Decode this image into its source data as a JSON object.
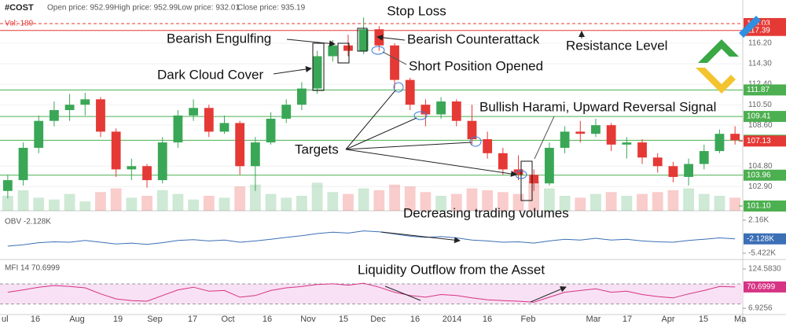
{
  "chart_data": {
    "type": "candlestick",
    "header": {
      "symbol": "#COST",
      "open": "Open price: 952.99",
      "high": "High price: 952.99",
      "low": "Low price: 932.01",
      "close": "Close price: 935.19",
      "volume": "Vol: 189"
    },
    "annotations": [
      "Stop Loss",
      "Bearish Engulfing",
      "Bearish Counterattack",
      "Resistance Level",
      "Dark Cloud Cover",
      "Short Position Opened",
      "Bullish Harami, Upward Reversal Signal",
      "Targets",
      "Decreasing trading volumes",
      "Liquidity Outflow from the Asset"
    ],
    "x_labels": [
      "ul",
      "16",
      "Aug",
      "19",
      "Sep",
      "17",
      "Oct",
      "16",
      "Nov",
      "15",
      "Dec",
      "16",
      "2014",
      "16",
      "Feb",
      "Mar",
      "17",
      "Apr",
      "15",
      "Ma"
    ],
    "up_color": "#3aa757",
    "down_color": "#e53935",
    "ylim": [
      100.66,
      118.61
    ],
    "yticks": [
      {
        "value": 116.2,
        "label": "116.20"
      },
      {
        "value": 114.3,
        "label": "114.30"
      },
      {
        "value": 112.4,
        "label": "112.40"
      },
      {
        "value": 110.5,
        "label": "110.50"
      },
      {
        "value": 108.6,
        "label": "108.60"
      },
      {
        "value": 104.8,
        "label": "104.80"
      },
      {
        "value": 102.9,
        "label": "102.90"
      }
    ],
    "levels": [
      {
        "value": 118.03,
        "label": "118.03",
        "color": "#e53935",
        "dashed": true
      },
      {
        "value": 117.39,
        "label": "117.39",
        "color": "#e53935",
        "dashed": false
      },
      {
        "value": 111.87,
        "label": "111.87",
        "color": "#4caf50",
        "dashed": false
      },
      {
        "value": 109.41,
        "label": "109.41",
        "color": "#4caf50",
        "dashed": false
      },
      {
        "value": 107.2,
        "label": "107.20",
        "color": "#4caf50",
        "dashed": false
      },
      {
        "value": 103.96,
        "label": "103.96",
        "color": "#4caf50",
        "dashed": false
      }
    ],
    "price_labels": [
      {
        "value": 107.13,
        "label": "107.13",
        "color": "#e53935"
      },
      {
        "value": 101.1,
        "label": "101.10",
        "color": "#4caf50"
      }
    ],
    "open": [
      102.5,
      103.5,
      106.5,
      109,
      110,
      110.5,
      111,
      108,
      104.5,
      104.8,
      103.5,
      107,
      109.5,
      110.2,
      108,
      108.8,
      104.8,
      107,
      109.2,
      110.5,
      112,
      115,
      116,
      115.5,
      117.5,
      116,
      112.8,
      110.5,
      109.6,
      110.8,
      109,
      107.3,
      106,
      104.5,
      104,
      103.2,
      106.5,
      108,
      107.8,
      108.6,
      106.8,
      107,
      105.6,
      104.8,
      103.8,
      105,
      106.2,
      107.8
    ],
    "high": [
      104,
      107,
      109.5,
      110.8,
      111.5,
      111.6,
      111.2,
      108.3,
      105.5,
      105,
      107.5,
      110,
      111,
      110.5,
      109.5,
      109,
      107.5,
      109.8,
      111,
      112.6,
      115.5,
      116.5,
      117,
      118.6,
      117.8,
      116.2,
      113,
      111,
      111.2,
      111,
      110.5,
      108,
      106.5,
      105.8,
      104.5,
      107,
      108.5,
      109,
      109.2,
      108.8,
      107.5,
      107.3,
      106,
      105.2,
      105.5,
      106.8,
      108.2,
      108.5
    ],
    "low": [
      101.8,
      103,
      106,
      108.5,
      109,
      109.5,
      107.5,
      103.8,
      103.5,
      102.8,
      103.2,
      106.5,
      109,
      107.5,
      107.8,
      104,
      102.5,
      106.8,
      108.8,
      110,
      111.5,
      114.5,
      115,
      115.2,
      115.5,
      112,
      110,
      108.5,
      109.2,
      108.5,
      106.8,
      105.5,
      104,
      103.5,
      102.5,
      103,
      106,
      107,
      107.5,
      106.2,
      105.5,
      105,
      104.2,
      103.3,
      103,
      104.5,
      106,
      106.8
    ],
    "close": [
      103.5,
      106.5,
      109,
      110,
      110.5,
      111,
      108,
      104.5,
      104.8,
      103.5,
      107,
      109.5,
      110.2,
      108,
      108.8,
      104.8,
      107,
      109.2,
      110.5,
      112,
      115,
      116,
      115.5,
      117.5,
      116,
      112.8,
      110.5,
      109.6,
      110.8,
      109,
      107.3,
      106,
      104.5,
      104,
      103.2,
      106.5,
      108,
      107.8,
      108.6,
      106.8,
      107,
      105.6,
      104.8,
      103.8,
      105,
      106.2,
      107.8,
      107.2
    ],
    "volume": [
      40,
      55,
      35,
      30,
      45,
      25,
      50,
      60,
      35,
      40,
      55,
      45,
      30,
      40,
      35,
      65,
      70,
      45,
      35,
      40,
      75,
      50,
      45,
      60,
      55,
      70,
      65,
      50,
      40,
      45,
      60,
      55,
      50,
      45,
      80,
      60,
      40,
      35,
      45,
      50,
      40,
      45,
      50,
      55,
      60,
      45,
      40,
      35
    ],
    "obv": {
      "name": "OBV -2.128K",
      "color": "#3b6fb6",
      "ylim": [
        -6.87,
        3.97
      ],
      "yticks": [
        {
          "value": 2.16,
          "label": "2.16K"
        },
        {
          "value": -5.422,
          "label": "-5.422K"
        }
      ],
      "last": {
        "value": -2.128,
        "label": "-2.128K"
      },
      "values": [
        -3.8,
        -3.5,
        -3.0,
        -2.8,
        -2.9,
        -2.5,
        -2.9,
        -3.3,
        -3.1,
        -3.4,
        -3.0,
        -2.5,
        -2.3,
        -2.6,
        -2.4,
        -2.9,
        -2.6,
        -2.2,
        -1.8,
        -1.4,
        -0.9,
        -0.6,
        -0.8,
        -0.3,
        -0.5,
        -1.0,
        -1.5,
        -1.8,
        -1.6,
        -1.9,
        -2.4,
        -2.6,
        -2.9,
        -2.8,
        -3.1,
        -2.6,
        -2.2,
        -2.4,
        -2.0,
        -2.4,
        -2.2,
        -2.6,
        -2.8,
        -2.9,
        -2.5,
        -2.2,
        -1.9,
        -2.128
      ]
    },
    "mfi": {
      "name": "MFI 14 70.6999",
      "color": "#d63384",
      "ylim": [
        -11.9,
        148.1
      ],
      "yticks": [
        {
          "value": 124.583,
          "label": "124.5830"
        },
        {
          "value": 6.9256,
          "label": "6.9256"
        }
      ],
      "bands": [
        80,
        20
      ],
      "last": {
        "value": 70.6999,
        "label": "70.6999"
      },
      "values": [
        55,
        62,
        70,
        75,
        72,
        68,
        50,
        35,
        30,
        28,
        45,
        62,
        70,
        58,
        60,
        40,
        45,
        60,
        68,
        72,
        78,
        80,
        76,
        82,
        70,
        55,
        45,
        40,
        48,
        45,
        38,
        32,
        30,
        28,
        25,
        40,
        55,
        60,
        65,
        55,
        58,
        48,
        42,
        38,
        50,
        60,
        72,
        70.6999
      ]
    }
  }
}
